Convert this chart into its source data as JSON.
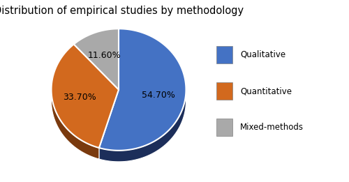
{
  "title": "Distribution of empirical studies by methodology",
  "labels": [
    "Qualitative",
    "Quantitative",
    "Mixed-methods"
  ],
  "values": [
    54.7,
    33.7,
    11.6
  ],
  "colors": [
    "#4472C4",
    "#D2691E",
    "#A9A9A9"
  ],
  "dark_colors": [
    "#1C2E5A",
    "#7A3A0E",
    "#606060"
  ],
  "pct_labels": [
    "54.70%",
    "33.70%",
    "11.60%"
  ],
  "legend_labels": [
    "Qualitative",
    "Quantitative",
    "Mixed-methods"
  ],
  "wedge_edgecolor": "white",
  "wedge_linewidth": 1.5,
  "title_fontsize": 10.5,
  "label_fontsize": 9,
  "start_angle": 90
}
